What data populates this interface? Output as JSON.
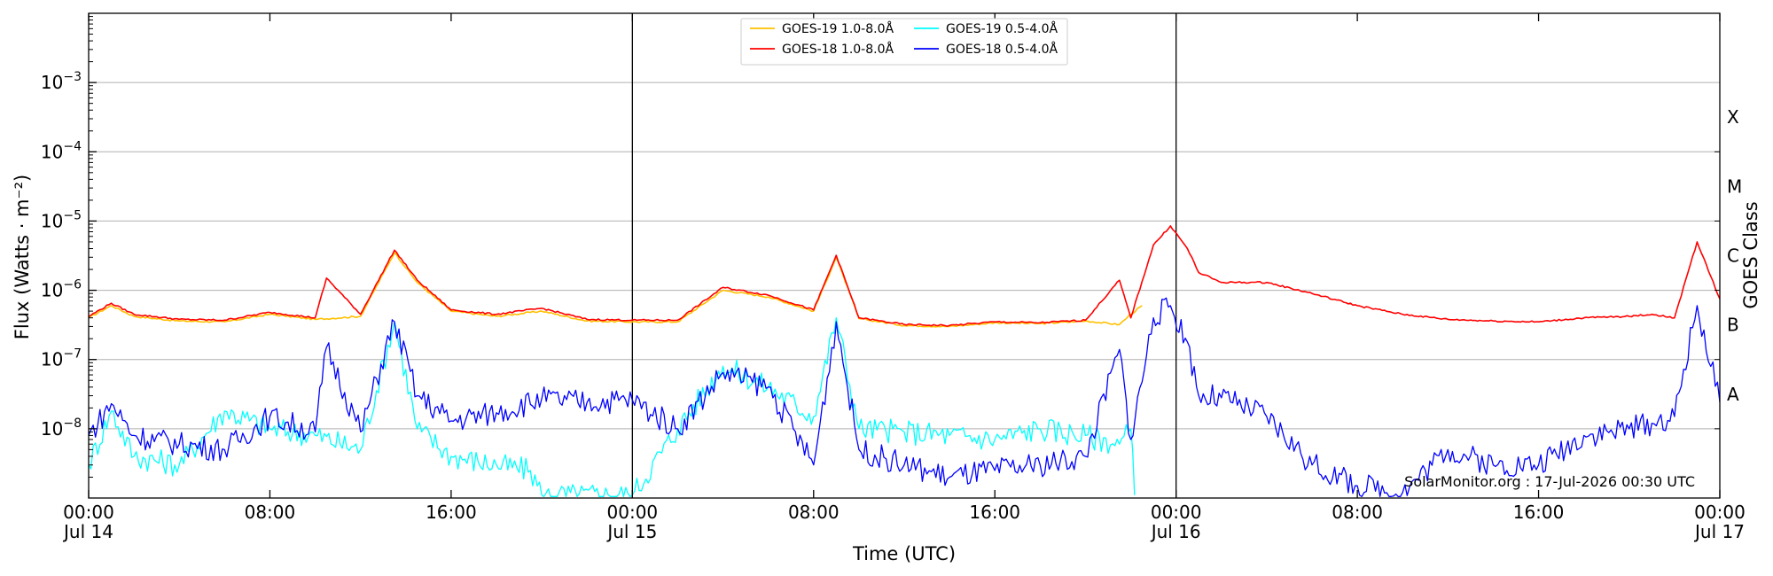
{
  "chart_data": {
    "type": "line",
    "xlabel": "Time (UTC)",
    "ylabel": "Flux (Watts · m⁻²)",
    "y2label": "GOES Class",
    "yscale": "log",
    "ylim": [
      1e-09,
      0.01
    ],
    "x_range": [
      "2026-07-14 00:00",
      "2026-07-17 00:00"
    ],
    "grid": "horizontal at decades",
    "legend_position": "top-center",
    "credit": "SolarMonitor.org : 17-Jul-2026 00:30 UTC",
    "day_dividers": [
      "2026-07-15 00:00",
      "2026-07-16 00:00"
    ],
    "x_ticks": [
      {
        "at": "2026-07-14 00:00",
        "line1": "00:00",
        "line2": "Jul 14"
      },
      {
        "at": "2026-07-14 08:00",
        "line1": "08:00",
        "line2": ""
      },
      {
        "at": "2026-07-14 16:00",
        "line1": "16:00",
        "line2": ""
      },
      {
        "at": "2026-07-15 00:00",
        "line1": "00:00",
        "line2": "Jul 15"
      },
      {
        "at": "2026-07-15 08:00",
        "line1": "08:00",
        "line2": ""
      },
      {
        "at": "2026-07-15 16:00",
        "line1": "16:00",
        "line2": ""
      },
      {
        "at": "2026-07-16 00:00",
        "line1": "00:00",
        "line2": "Jul 16"
      },
      {
        "at": "2026-07-16 08:00",
        "line1": "08:00",
        "line2": ""
      },
      {
        "at": "2026-07-16 16:00",
        "line1": "16:00",
        "line2": ""
      },
      {
        "at": "2026-07-17 00:00",
        "line1": "00:00",
        "line2": "Jul 17"
      }
    ],
    "y_ticks": [
      {
        "value": 1e-08,
        "base": "10",
        "exp": "−8"
      },
      {
        "value": 1e-07,
        "base": "10",
        "exp": "−7"
      },
      {
        "value": 1e-06,
        "base": "10",
        "exp": "−6"
      },
      {
        "value": 1e-05,
        "base": "10",
        "exp": "−5"
      },
      {
        "value": 0.0001,
        "base": "10",
        "exp": "−4"
      },
      {
        "value": 0.001,
        "base": "10",
        "exp": "−3"
      }
    ],
    "goes_classes": [
      {
        "label": "A",
        "flux": 1e-08
      },
      {
        "label": "B",
        "flux": 1e-07
      },
      {
        "label": "C",
        "flux": 1e-06
      },
      {
        "label": "M",
        "flux": 1e-05
      },
      {
        "label": "X",
        "flux": 0.0001
      }
    ],
    "series": [
      {
        "name": "GOES-19 1.0-8.0Å",
        "color": "#ffc000",
        "x": [
          "2026-07-14 00:00",
          "2026-07-14 01:00",
          "2026-07-14 02:00",
          "2026-07-14 04:00",
          "2026-07-14 06:00",
          "2026-07-14 08:00",
          "2026-07-14 10:00",
          "2026-07-14 12:00",
          "2026-07-14 13:30",
          "2026-07-14 14:30",
          "2026-07-14 16:00",
          "2026-07-14 18:00",
          "2026-07-14 20:00",
          "2026-07-14 22:00",
          "2026-07-15 00:00",
          "2026-07-15 02:00",
          "2026-07-15 04:00",
          "2026-07-15 06:00",
          "2026-07-15 08:00",
          "2026-07-15 09:00",
          "2026-07-15 10:00",
          "2026-07-15 12:00",
          "2026-07-15 14:00",
          "2026-07-15 16:00",
          "2026-07-15 18:00",
          "2026-07-15 20:00",
          "2026-07-15 21:30",
          "2026-07-15 22:00",
          "2026-07-15 22:30"
        ],
        "y": [
          4e-07,
          6e-07,
          4.2e-07,
          3.6e-07,
          3.5e-07,
          4.5e-07,
          3.8e-07,
          4.2e-07,
          3.5e-06,
          1.3e-06,
          5e-07,
          4.2e-07,
          5e-07,
          3.6e-07,
          3.5e-07,
          3.5e-07,
          1e-06,
          8e-07,
          5e-07,
          3e-06,
          3.9e-07,
          3.1e-07,
          3e-07,
          3.4e-07,
          3.3e-07,
          3.6e-07,
          3.2e-07,
          4.5e-07,
          6e-07
        ]
      },
      {
        "name": "GOES-19 0.5-4.0Å",
        "color": "#00ffff",
        "x": [
          "2026-07-14 00:00",
          "2026-07-14 01:00",
          "2026-07-14 02:00",
          "2026-07-14 04:00",
          "2026-07-14 06:00",
          "2026-07-14 08:00",
          "2026-07-14 10:00",
          "2026-07-14 12:00",
          "2026-07-14 13:30",
          "2026-07-14 14:30",
          "2026-07-14 16:00",
          "2026-07-14 18:00",
          "2026-07-14 19:30",
          "2026-07-14 20:00",
          "2026-07-15 00:00",
          "2026-07-15 02:00",
          "2026-07-15 04:00",
          "2026-07-15 06:00",
          "2026-07-15 08:00",
          "2026-07-15 09:00",
          "2026-07-15 10:00",
          "2026-07-15 12:00",
          "2026-07-15 14:00",
          "2026-07-15 16:00",
          "2026-07-15 18:00",
          "2026-07-15 20:00",
          "2026-07-15 21:30",
          "2026-07-15 22:00",
          "2026-07-15 22:10"
        ],
        "y": [
          3e-09,
          1.8e-08,
          4e-09,
          3e-09,
          1.8e-08,
          1e-08,
          8e-09,
          5e-09,
          3.5e-07,
          1e-08,
          4e-09,
          3e-09,
          2.5e-09,
          1.1e-09,
          1.1e-09,
          1e-08,
          8e-08,
          4e-08,
          1.5e-08,
          4e-07,
          1e-08,
          9e-09,
          8e-09,
          7e-09,
          1e-08,
          8e-09,
          6e-09,
          1e-08,
          1.1e-09
        ]
      },
      {
        "name": "GOES-18 1.0-8.0Å",
        "color": "#ff0000",
        "x": [
          "2026-07-14 00:00",
          "2026-07-14 01:00",
          "2026-07-14 02:00",
          "2026-07-14 04:00",
          "2026-07-14 06:00",
          "2026-07-14 08:00",
          "2026-07-14 10:00",
          "2026-07-14 10:30",
          "2026-07-14 12:00",
          "2026-07-14 13:30",
          "2026-07-14 14:30",
          "2026-07-14 16:00",
          "2026-07-14 18:00",
          "2026-07-14 20:00",
          "2026-07-14 22:00",
          "2026-07-15 00:00",
          "2026-07-15 02:00",
          "2026-07-15 04:00",
          "2026-07-15 06:00",
          "2026-07-15 08:00",
          "2026-07-15 09:00",
          "2026-07-15 10:00",
          "2026-07-15 12:00",
          "2026-07-15 14:00",
          "2026-07-15 16:00",
          "2026-07-15 18:00",
          "2026-07-15 20:00",
          "2026-07-15 21:30",
          "2026-07-15 22:00",
          "2026-07-15 23:00",
          "2026-07-15 23:45",
          "2026-07-16 00:30",
          "2026-07-16 01:00",
          "2026-07-16 02:00",
          "2026-07-16 04:00",
          "2026-07-16 06:00",
          "2026-07-16 08:00",
          "2026-07-16 10:00",
          "2026-07-16 12:00",
          "2026-07-16 14:00",
          "2026-07-16 16:00",
          "2026-07-16 18:00",
          "2026-07-16 20:00",
          "2026-07-16 21:00",
          "2026-07-16 22:00",
          "2026-07-16 23:00",
          "2026-07-17 00:00"
        ],
        "y": [
          4.2e-07,
          6.5e-07,
          4.5e-07,
          3.8e-07,
          3.7e-07,
          4.8e-07,
          4e-07,
          1.5e-06,
          4.5e-07,
          3.8e-06,
          1.4e-06,
          5.2e-07,
          4.5e-07,
          5.5e-07,
          3.8e-07,
          3.7e-07,
          3.7e-07,
          1.1e-06,
          8.5e-07,
          5.2e-07,
          3.2e-06,
          4e-07,
          3.2e-07,
          3.1e-07,
          3.5e-07,
          3.4e-07,
          3.7e-07,
          1.4e-06,
          4e-07,
          4.5e-06,
          8.5e-06,
          4e-06,
          1.8e-06,
          1.3e-06,
          1.3e-06,
          9e-07,
          6e-07,
          4.5e-07,
          3.8e-07,
          3.6e-07,
          3.5e-07,
          4e-07,
          4.2e-07,
          4.5e-07,
          4e-07,
          5e-06,
          7.5e-07
        ]
      },
      {
        "name": "GOES-18 0.5-4.0Å",
        "color": "#0000ff",
        "x": [
          "2026-07-14 00:00",
          "2026-07-14 01:00",
          "2026-07-14 02:00",
          "2026-07-14 04:00",
          "2026-07-14 06:00",
          "2026-07-14 08:00",
          "2026-07-14 10:00",
          "2026-07-14 10:30",
          "2026-07-14 12:00",
          "2026-07-14 13:30",
          "2026-07-14 14:30",
          "2026-07-14 16:00",
          "2026-07-14 18:00",
          "2026-07-14 20:00",
          "2026-07-14 22:00",
          "2026-07-15 00:00",
          "2026-07-15 02:00",
          "2026-07-15 04:00",
          "2026-07-15 06:00",
          "2026-07-15 08:00",
          "2026-07-15 09:00",
          "2026-07-15 10:00",
          "2026-07-15 12:00",
          "2026-07-15 14:00",
          "2026-07-15 16:00",
          "2026-07-15 18:00",
          "2026-07-15 20:00",
          "2026-07-15 21:30",
          "2026-07-15 22:00",
          "2026-07-15 23:00",
          "2026-07-15 23:45",
          "2026-07-16 00:30",
          "2026-07-16 01:00",
          "2026-07-16 02:00",
          "2026-07-16 04:00",
          "2026-07-16 06:00",
          "2026-07-16 08:00",
          "2026-07-16 10:00",
          "2026-07-16 12:00",
          "2026-07-16 14:00",
          "2026-07-16 16:00",
          "2026-07-16 18:00",
          "2026-07-16 20:00",
          "2026-07-16 21:00",
          "2026-07-16 22:00",
          "2026-07-16 23:00",
          "2026-07-17 00:00"
        ],
        "y": [
          8e-09,
          2.3e-08,
          8e-09,
          6e-09,
          5e-09,
          1.5e-08,
          9e-09,
          1.5e-07,
          9e-09,
          3.5e-07,
          3e-08,
          1.3e-08,
          1.7e-08,
          2.7e-08,
          2.4e-08,
          2.6e-08,
          1e-08,
          6.5e-08,
          4e-08,
          3e-09,
          3.5e-07,
          5e-09,
          3e-09,
          2e-09,
          2.5e-09,
          3e-09,
          4e-09,
          1.4e-07,
          7e-09,
          4e-07,
          6e-07,
          1.8e-07,
          3e-08,
          2.8e-08,
          1.5e-08,
          3e-09,
          1.5e-09,
          1.2e-09,
          5e-09,
          3e-09,
          3e-09,
          8e-09,
          1e-08,
          1.2e-08,
          1.5e-08,
          6e-07,
          2.4e-08
        ]
      }
    ]
  }
}
